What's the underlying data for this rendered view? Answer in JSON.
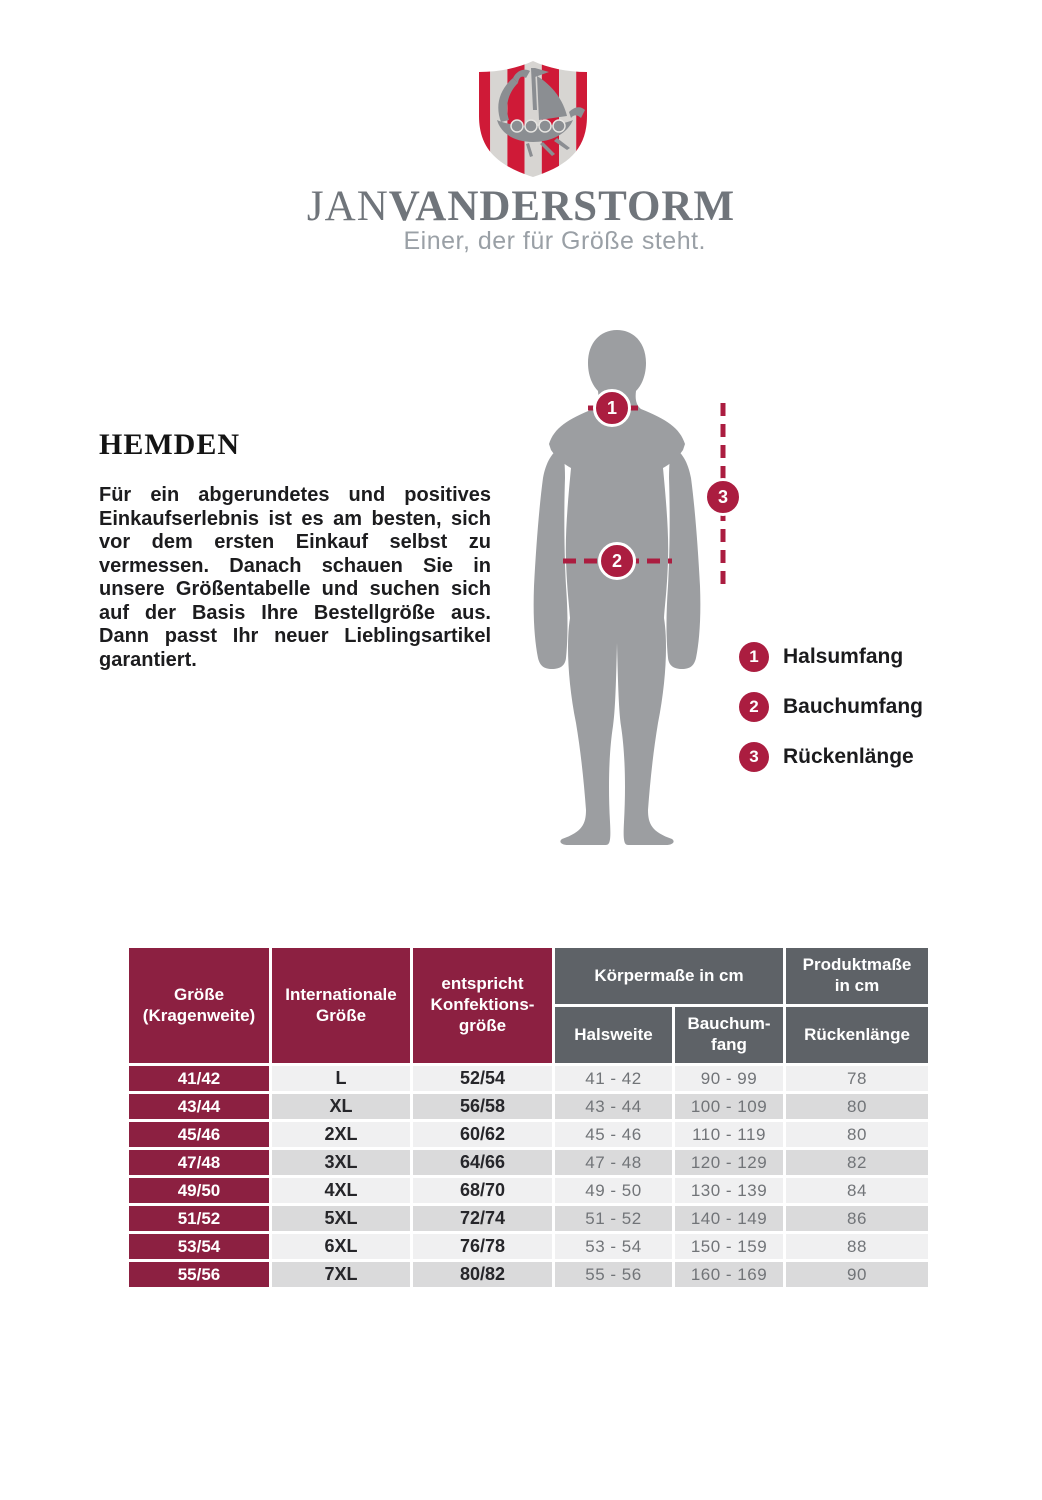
{
  "brand": {
    "name_regular": "JAN",
    "name_bold": "VANDERSTORM",
    "tagline": "Einer, der für Größe steht.",
    "crest_icon": "viking-ship-shield"
  },
  "intro": {
    "title": "HEMDEN",
    "body": "Für ein abgerundetes und positives Einkaufserlebnis ist es am besten, sich vor dem ersten Einkauf selbst zu vermessen. Danach schauen Sie in unsere Größentabelle und suchen sich auf der Basis Ihre Bestellgröße aus. Dann passt Ihr neuer Lieblingsartikel garantiert."
  },
  "diagram": {
    "markers": [
      {
        "num": "1",
        "label": "Halsumfang"
      },
      {
        "num": "2",
        "label": "Bauchumfang"
      },
      {
        "num": "3",
        "label": "Rückenlänge"
      }
    ]
  },
  "table": {
    "col_headers": [
      "Größe\n(Kragenweite)",
      "Internationale\nGröße",
      "entspricht\nKonfektions-\ngröße"
    ],
    "group_headers": [
      "Körpermaße in cm",
      "Produktmaße\nin cm"
    ],
    "sub_headers": [
      "Halsweite",
      "Bauchum-\nfang",
      "Rückenlänge"
    ],
    "rows": [
      [
        "41/42",
        "L",
        "52/54",
        "41 - 42",
        "90 - 99",
        "78"
      ],
      [
        "43/44",
        "XL",
        "56/58",
        "43 - 44",
        "100 - 109",
        "80"
      ],
      [
        "45/46",
        "2XL",
        "60/62",
        "45 - 46",
        "110 - 119",
        "80"
      ],
      [
        "47/48",
        "3XL",
        "64/66",
        "47 - 48",
        "120 - 129",
        "82"
      ],
      [
        "49/50",
        "4XL",
        "68/70",
        "49 - 50",
        "130 - 139",
        "84"
      ],
      [
        "51/52",
        "5XL",
        "72/74",
        "51 - 52",
        "140 - 149",
        "86"
      ],
      [
        "53/54",
        "6XL",
        "76/78",
        "53 - 54",
        "150 - 159",
        "88"
      ],
      [
        "55/56",
        "7XL",
        "80/82",
        "55 - 56",
        "160 - 169",
        "90"
      ]
    ]
  },
  "colors": {
    "table_maroon": "#8c2041",
    "marker_crimson": "#ab1d40",
    "crest_red": "#cf1a37",
    "crest_stripe_gray": "#d7d5d2",
    "header_gray": "#5e6267",
    "silhouette_gray": "#9c9ea1",
    "brand_text_gray": "#70757b"
  }
}
